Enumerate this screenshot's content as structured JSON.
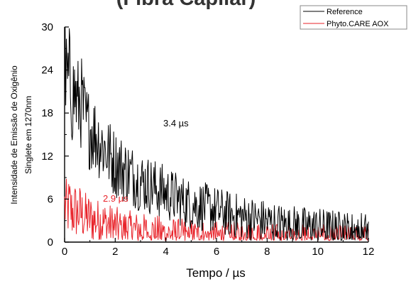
{
  "chart_data": {
    "type": "line",
    "title": "(Fibra Capilar)",
    "xlabel": "Tempo / µs",
    "ylabel_lines": [
      "Intensidade de Emissão de Oxigênio",
      "Singlete em 1270nm"
    ],
    "xlim": [
      0,
      12
    ],
    "ylim": [
      0,
      30
    ],
    "x_ticks": [
      "0",
      "2",
      "4",
      "6",
      "8",
      "10",
      "12"
    ],
    "y_ticks": [
      "0",
      "6",
      "12",
      "18",
      "24",
      "30"
    ],
    "legend_position": "top-right",
    "series": [
      {
        "name": "Reference",
        "color": "#000000",
        "lifetime_label": "3.4 µs",
        "x": [
          0.0,
          0.1,
          0.2,
          0.3,
          0.4,
          0.5,
          0.6,
          0.7,
          0.8,
          0.9,
          1.0,
          1.2,
          1.4,
          1.6,
          1.8,
          2.0,
          2.2,
          2.4,
          2.6,
          2.8,
          3.0,
          3.3,
          3.6,
          3.9,
          4.2,
          4.5,
          4.8,
          5.1,
          5.4,
          5.7,
          6.0,
          6.3,
          6.6,
          6.9,
          7.2,
          7.5,
          7.8,
          8.1,
          8.4,
          8.7,
          9.0,
          9.5,
          10.0,
          10.5,
          11.0,
          11.5,
          12.0
        ],
        "y": [
          24,
          22,
          23,
          20,
          21,
          19,
          20,
          19,
          17,
          16,
          16,
          15,
          14,
          13,
          12,
          11,
          10.5,
          10,
          9.5,
          9,
          8.5,
          8,
          7.5,
          7,
          6.5,
          6,
          5.5,
          5.2,
          5,
          4.7,
          4.4,
          4.1,
          3.8,
          3.6,
          3.4,
          3.2,
          3,
          2.8,
          2.6,
          2.4,
          2.3,
          2.1,
          2,
          1.8,
          1.6,
          1.5,
          1.4
        ]
      },
      {
        "name": "Phyto.CARE AOX",
        "color": "#e8232a",
        "lifetime_label": "2.9 µs",
        "x": [
          0.0,
          0.1,
          0.2,
          0.3,
          0.4,
          0.5,
          0.6,
          0.7,
          0.8,
          0.9,
          1.0,
          1.2,
          1.4,
          1.6,
          1.8,
          2.0,
          2.2,
          2.4,
          2.6,
          2.8,
          3.0,
          3.3,
          3.6,
          3.9,
          4.2,
          4.5,
          4.8,
          5.1,
          5.4,
          5.7,
          6.0,
          6.3,
          6.6,
          6.9,
          7.2,
          7.5,
          7.8,
          8.1,
          8.4,
          8.7,
          9.0,
          9.5,
          10.0,
          10.5,
          11.0,
          11.5,
          12.0
        ],
        "y": [
          5,
          4.5,
          5,
          4,
          4.5,
          4,
          4.2,
          3.8,
          3.5,
          3.5,
          3.3,
          3,
          2.8,
          2.6,
          2.4,
          2.2,
          2,
          1.9,
          1.8,
          1.7,
          1.6,
          1.5,
          1.4,
          1.3,
          1.2,
          1.1,
          1.05,
          1,
          0.95,
          0.9,
          0.85,
          0.8,
          0.78,
          0.75,
          0.72,
          0.7,
          0.68,
          0.66,
          0.64,
          0.62,
          0.6,
          0.58,
          0.56,
          0.54,
          0.52,
          0.5,
          0.5
        ]
      }
    ]
  }
}
